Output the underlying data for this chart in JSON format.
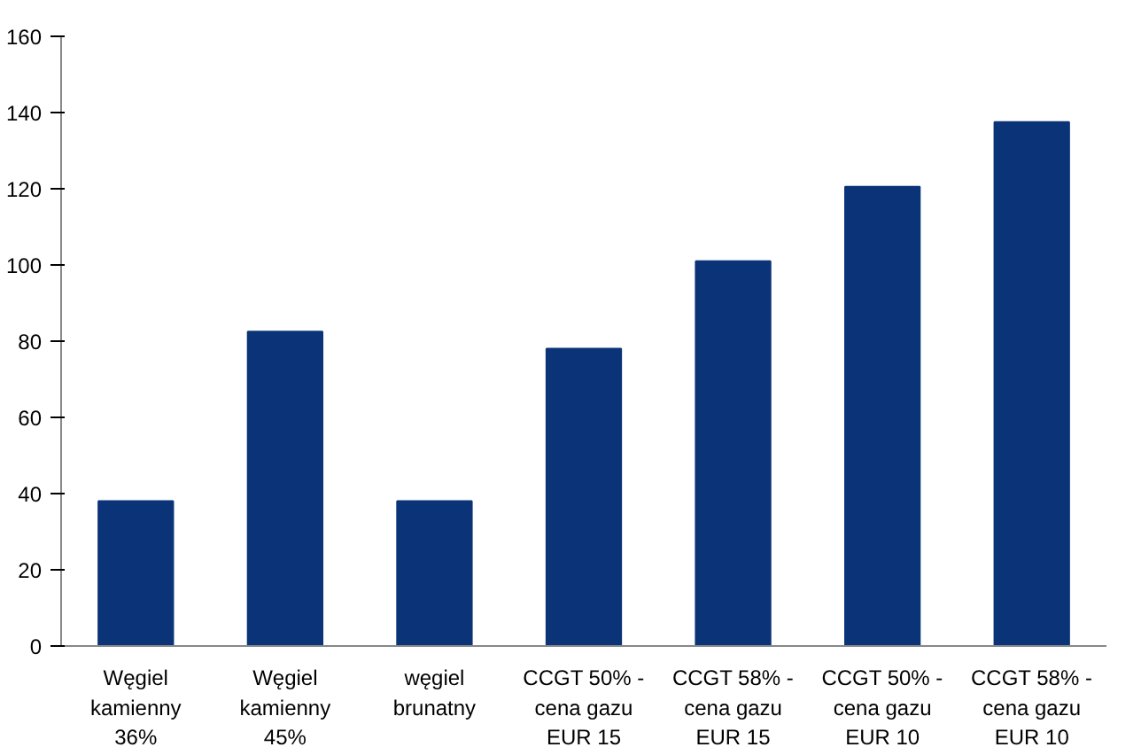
{
  "chart_data": {
    "type": "bar",
    "categories": [
      "Węgiel kamienny 36%",
      "Węgiel kamienny 45%",
      "węgiel brunatny",
      "CCGT 50% - cena gazu EUR 15",
      "CCGT 58% - cena gazu EUR 15",
      "CCGT 50% - cena gazu EUR 10",
      "CCGT 58% - cena gazu EUR 10"
    ],
    "values": [
      38,
      82.5,
      38,
      78,
      101,
      120.5,
      137.5
    ],
    "color": "#0b3478",
    "ylim": [
      0,
      160
    ],
    "yticks": [
      0,
      20,
      40,
      60,
      80,
      100,
      120,
      140,
      160
    ],
    "grid": false
  }
}
